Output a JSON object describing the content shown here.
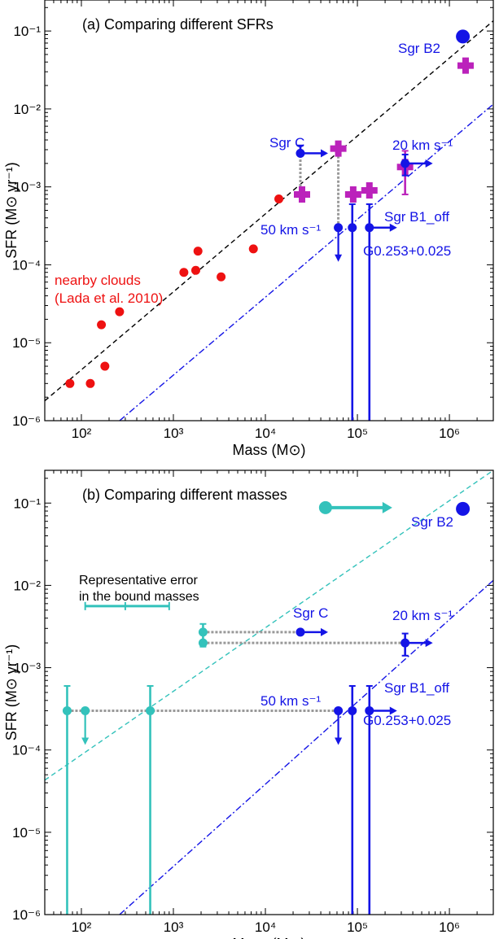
{
  "colors": {
    "observed": "#1414e6",
    "uncorrected": "#bb22bb",
    "nearby": "#ee1111",
    "bound": "#33c2bb",
    "connector": "#999999",
    "fit_a": "#000000",
    "fit_b": "#1414e6"
  },
  "chart_data": [
    {
      "panel": "a",
      "type": "scatter",
      "title": "(a) Comparing different SFRs",
      "xlabel": "Mass (M⊙)",
      "ylabel": "SFR (M⊙ yr⁻¹)",
      "xscale": "log",
      "yscale": "log",
      "xlim": [
        40,
        3000000
      ],
      "ylim": [
        1e-06,
        0.25
      ],
      "xticks": [
        "10²",
        "10³",
        "10⁴",
        "10⁵",
        "10⁶"
      ],
      "yticks": [
        "10⁻⁶",
        "10⁻⁵",
        "10⁻⁴",
        "10⁻³",
        "10⁻²",
        "10⁻¹"
      ],
      "lines": [
        {
          "style": "dashed",
          "color_key": "fit_a",
          "points": [
            [
              40,
              1.8e-06
            ],
            [
              3000000,
              0.135
            ]
          ]
        },
        {
          "style": "dashdot",
          "color_key": "fit_b",
          "points": [
            [
              260,
              1e-06
            ],
            [
              3000000,
              0.0115
            ]
          ]
        }
      ],
      "nearby_clouds": {
        "label_lines": [
          "nearby clouds",
          "(Lada et al. 2010)"
        ],
        "points": [
          [
            75,
            3e-06
          ],
          [
            125,
            3e-06
          ],
          [
            165,
            1.7e-05
          ],
          [
            180,
            5e-06
          ],
          [
            260,
            2.5e-05
          ],
          [
            1300,
            8e-05
          ],
          [
            1750,
            8.5e-05
          ],
          [
            1850,
            0.00015
          ],
          [
            3300,
            7e-05
          ],
          [
            7400,
            0.00016
          ],
          [
            14000,
            0.0007
          ]
        ]
      },
      "clouds": [
        {
          "name": "Sgr B2",
          "x": 1400000,
          "y": 0.085,
          "marker": "big-circle",
          "label": "Sgr B2"
        },
        {
          "name": "Sgr C",
          "x": 24000,
          "y": 0.0027,
          "lower_limit_x": true,
          "err_up": 0.0034,
          "label": "Sgr C"
        },
        {
          "name": "20 km s-1",
          "x": 330000,
          "y": 0.002,
          "lower_limit_x": true,
          "err_low": 0.0014,
          "err_up": 0.0026,
          "label": "20 km s⁻¹"
        },
        {
          "name": "50 km s-1",
          "x": 62000,
          "y": 0.0003,
          "upper_limit_y": true,
          "label": "50 km s⁻¹"
        },
        {
          "name": "G0.253+0.025",
          "x": 88000,
          "y": 0.0003,
          "err_low": 1e-06,
          "err_up": 0.0006,
          "label": "G0.253+0.025"
        },
        {
          "name": "Sgr B1_off",
          "x": 135000,
          "y": 0.0003,
          "lower_limit_x": true,
          "err_low": 1e-06,
          "err_up": 0.0006,
          "label": "Sgr B1_off"
        }
      ],
      "uncorrected_sfr": [
        {
          "x": 1500000,
          "y": 0.036
        },
        {
          "x": 25000,
          "y": 0.0008
        },
        {
          "x": 62000,
          "y": 0.0031
        },
        {
          "x": 90000,
          "y": 0.0008
        },
        {
          "x": 135000,
          "y": 0.0009
        },
        {
          "x": 330000,
          "y": 0.0018,
          "err_low": 0.0008,
          "err_up": 0.0029
        }
      ],
      "connectors": [
        {
          "x": 24000,
          "y1": 0.0008,
          "y2": 0.0027
        },
        {
          "x": 62000,
          "y1": 0.0003,
          "y2": 0.0031
        }
      ]
    },
    {
      "panel": "b",
      "type": "scatter",
      "title": "(b) Comparing different masses",
      "xlabel": "Mass (M⊙)",
      "ylabel": "SFR (M⊙ yr⁻¹)",
      "xscale": "log",
      "yscale": "log",
      "xlim": [
        40,
        3000000
      ],
      "ylim": [
        1e-06,
        0.25
      ],
      "xticks": [
        "10²",
        "10³",
        "10⁴",
        "10⁵",
        "10⁶"
      ],
      "yticks": [
        "10⁻⁶",
        "10⁻⁵",
        "10⁻⁴",
        "10⁻³",
        "10⁻²",
        "10⁻¹"
      ],
      "lines": [
        {
          "style": "dashed",
          "color_key": "bound",
          "points": [
            [
              40,
              4.3e-05
            ],
            [
              3000000,
              0.25
            ]
          ]
        },
        {
          "style": "dashdot",
          "color_key": "fit_b",
          "points": [
            [
              260,
              1e-06
            ],
            [
              3000000,
              0.0115
            ]
          ]
        }
      ],
      "representative_error": {
        "label_lines": [
          "Representative error",
          "in the bound masses"
        ],
        "x_center": 300,
        "x_low": 110,
        "x_high": 900,
        "y": 0.0056
      },
      "clouds": [
        {
          "name": "Sgr B2",
          "x": 1400000,
          "y": 0.085,
          "marker": "big-circle",
          "label": "Sgr B2"
        },
        {
          "name": "Sgr C",
          "x": 24000,
          "y": 0.0027,
          "lower_limit_x": true,
          "label": "Sgr C"
        },
        {
          "name": "20 km s-1",
          "x": 330000,
          "y": 0.002,
          "lower_limit_x": true,
          "err_low": 0.0014,
          "err_up": 0.0026,
          "label": "20 km s⁻¹"
        },
        {
          "name": "50 km s-1",
          "x": 62000,
          "y": 0.0003,
          "upper_limit_y": true,
          "label": "50 km s⁻¹"
        },
        {
          "name": "G0.253+0.025",
          "x": 88000,
          "y": 0.0003,
          "err_low": 1e-06,
          "err_up": 0.0006,
          "label": "G0.253+0.025"
        },
        {
          "name": "Sgr B1_off",
          "x": 135000,
          "y": 0.0003,
          "lower_limit_x": true,
          "err_low": 1e-06,
          "err_up": 0.0006,
          "label": "Sgr B1_off"
        }
      ],
      "bound_mass_points": [
        {
          "x": 45000,
          "y": 0.088,
          "size": "big",
          "lower_limit_x": true
        },
        {
          "x": 2100,
          "y": 0.0027,
          "err_low": 0.0018,
          "err_up": 0.0034
        },
        {
          "x": 2100,
          "y": 0.002
        },
        {
          "x": 70,
          "y": 0.0003,
          "err_low": 1e-06,
          "err_up": 0.0006
        },
        {
          "x": 110,
          "y": 0.0003,
          "upper_limit_y": true
        },
        {
          "x": 560,
          "y": 0.0003,
          "err_low": 1e-06,
          "err_up": 0.0006
        }
      ],
      "connectors": [
        {
          "y": 0.0027,
          "x1": 2100,
          "x2": 24000
        },
        {
          "y": 0.002,
          "x1": 2100,
          "x2": 330000
        },
        {
          "y": 0.0003,
          "x1": 70,
          "x2": 62000
        }
      ]
    }
  ]
}
